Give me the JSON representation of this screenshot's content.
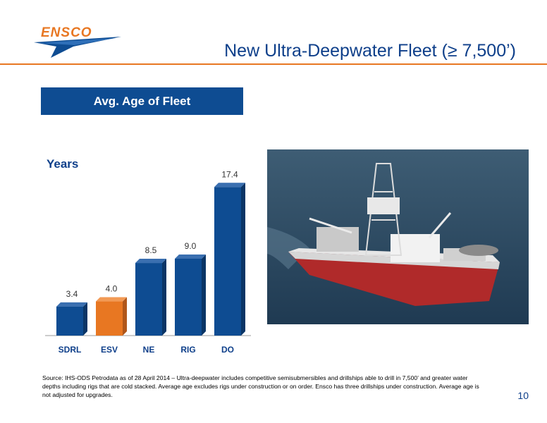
{
  "header": {
    "logo_text": "ENSCO",
    "title": "New Ultra-Deepwater Fleet (≥ 7,500’)"
  },
  "colors": {
    "primary": "#0e4c92",
    "accent": "#e87722"
  },
  "subhead": "Avg. Age of Fleet",
  "chart_data": {
    "type": "bar",
    "title": "",
    "ylabel": "Years",
    "xlabel": "",
    "categories": [
      "SDRL",
      "ESV",
      "NE",
      "RIG",
      "DO"
    ],
    "values": [
      3.4,
      4.0,
      8.5,
      9.0,
      17.4
    ],
    "data_labels": [
      "3.4",
      "4.0",
      "8.5",
      "9.0",
      "17.4"
    ],
    "highlight": "ESV",
    "bar_colors": [
      "#0e4c92",
      "#e87722",
      "#0e4c92",
      "#0e4c92",
      "#0e4c92"
    ],
    "ylim": [
      0,
      18
    ],
    "grid": false
  },
  "source_note": "Source: IHS-ODS Petrodata as of 28 April 2014 – Ultra-deepwater includes competitive semisubmersibles and drillships able to drill in 7,500’ and greater water depths including rigs that are cold stacked. Average age excludes rigs under construction or on order. Ensco has three drillships under construction.  Average age is not adjusted for upgrades.",
  "page_number": "10"
}
